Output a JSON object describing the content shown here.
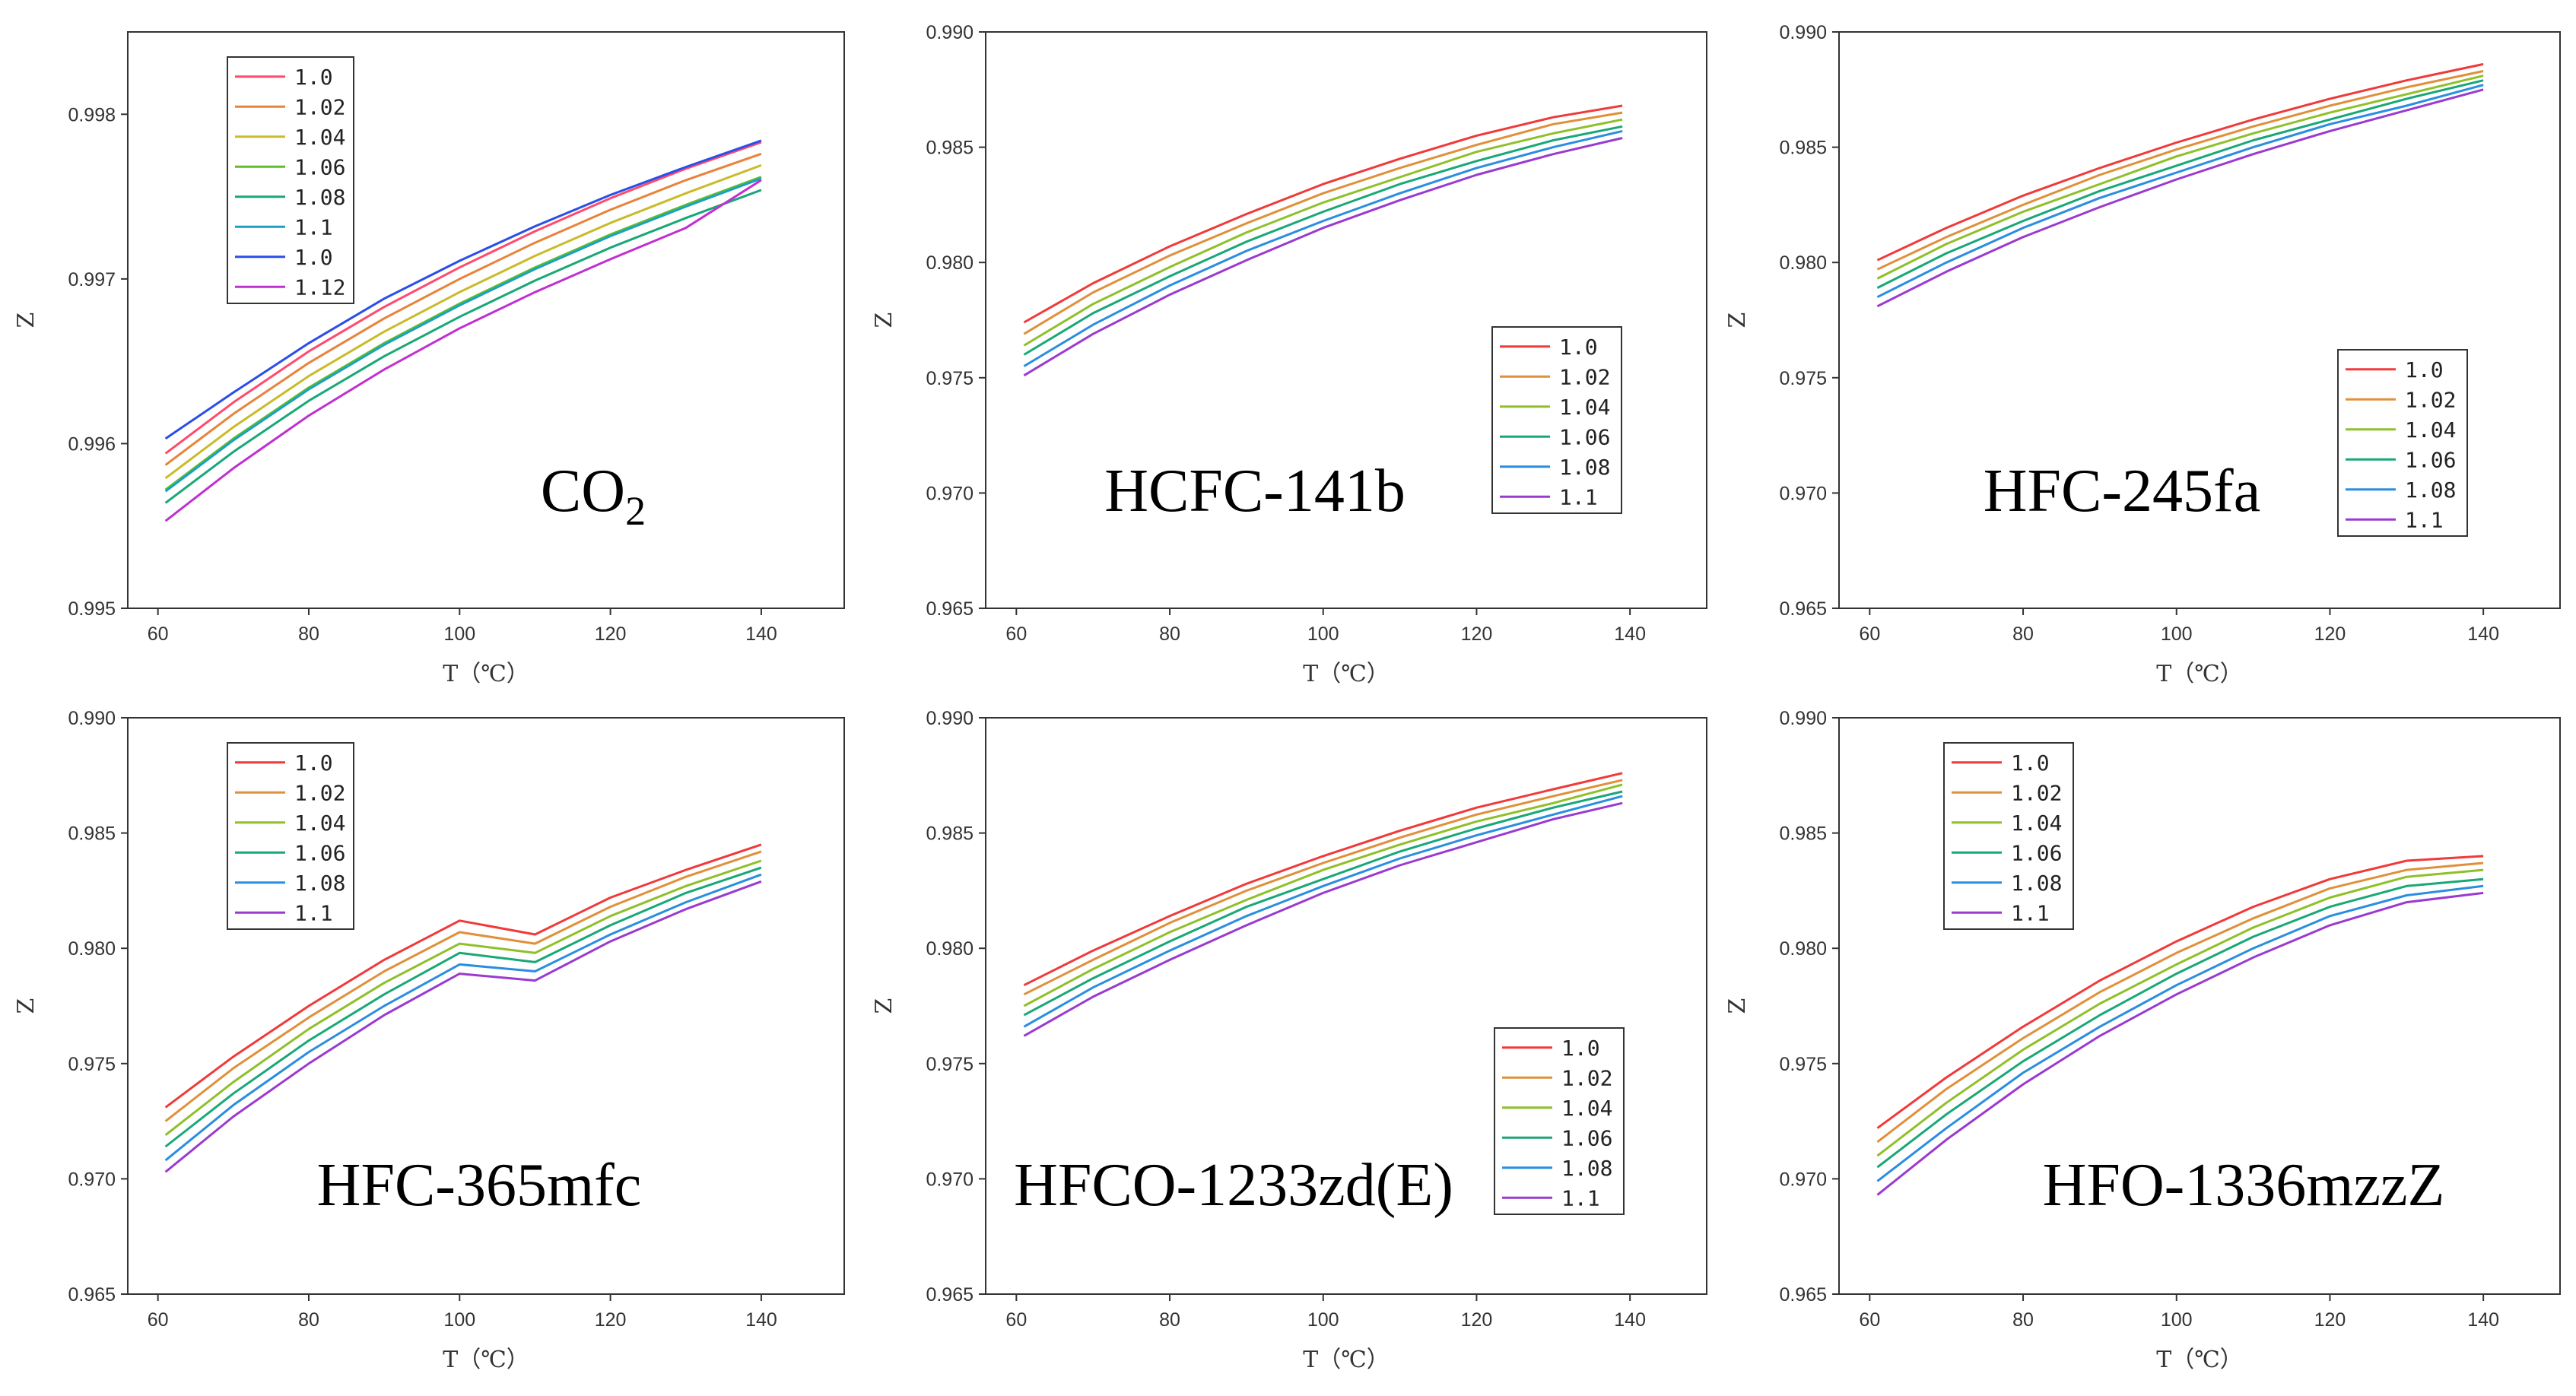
{
  "figure": {
    "x_axis_label": "T（℃）",
    "y_axis_label": "Z"
  },
  "chart_data": [
    {
      "type": "line",
      "title": "CO2",
      "title_main": "CO",
      "title_sub": "2",
      "title_pos": "bottom-right",
      "xlabel": "T（℃）",
      "ylabel": "Z",
      "xlim": [
        56,
        151
      ],
      "ylim": [
        0.995,
        0.9985
      ],
      "xticks": [
        60,
        80,
        100,
        120,
        140
      ],
      "yticks": [
        0.995,
        0.996,
        0.997,
        0.998
      ],
      "ytick_labels": [
        "0.995",
        "0.996",
        "0.997",
        "0.998"
      ],
      "x": [
        61,
        70,
        80,
        90,
        100,
        110,
        120,
        130,
        140
      ],
      "legend_pos": "top-left",
      "series": [
        {
          "name": "1.0",
          "color": "#ff4a6e",
          "values": [
            0.99594,
            0.99625,
            0.99656,
            0.99683,
            0.99707,
            0.99729,
            0.99749,
            0.99767,
            0.99783
          ]
        },
        {
          "name": "1.02",
          "color": "#e8833a",
          "values": [
            0.99587,
            0.99618,
            0.99649,
            0.99676,
            0.997,
            0.99722,
            0.99742,
            0.9976,
            0.99776
          ]
        },
        {
          "name": "1.04",
          "color": "#c9bb2a",
          "values": [
            0.99579,
            0.9961,
            0.99641,
            0.99668,
            0.99692,
            0.99714,
            0.99734,
            0.99752,
            0.99769
          ]
        },
        {
          "name": "1.06",
          "color": "#5cbf2a",
          "values": [
            0.99572,
            0.99603,
            0.99634,
            0.99661,
            0.99685,
            0.99707,
            0.99727,
            0.99745,
            0.99762
          ]
        },
        {
          "name": "1.08",
          "color": "#18a878",
          "values": [
            0.99564,
            0.99595,
            0.99626,
            0.99653,
            0.99677,
            0.99699,
            0.99719,
            0.99737,
            0.99754
          ]
        },
        {
          "name": "1.1",
          "color": "#1aa0c4",
          "values": [
            0.99571,
            0.99602,
            0.99633,
            0.9966,
            0.99684,
            0.99706,
            0.99726,
            0.99744,
            0.99761
          ]
        },
        {
          "name": "1.0",
          "color": "#2a4ee8",
          "values": [
            0.99603,
            0.99631,
            0.99661,
            0.99688,
            0.99711,
            0.99732,
            0.99751,
            0.99768,
            0.99784
          ]
        },
        {
          "name": "1.12",
          "color": "#c030d0",
          "values": [
            0.99553,
            0.99585,
            0.99617,
            0.99645,
            0.9967,
            0.99692,
            0.99712,
            0.99731,
            0.9976
          ]
        }
      ]
    },
    {
      "type": "line",
      "title": "HCFC-141b",
      "title_pos": "bottom-center",
      "xlabel": "T（℃）",
      "ylabel": "Z",
      "xlim": [
        56,
        150
      ],
      "ylim": [
        0.965,
        0.99
      ],
      "xticks": [
        60,
        80,
        100,
        120,
        140
      ],
      "yticks": [
        0.965,
        0.97,
        0.975,
        0.98,
        0.985,
        0.99
      ],
      "ytick_labels": [
        "0.965",
        "0.970",
        "0.975",
        "0.980",
        "0.985",
        "0.990"
      ],
      "x": [
        61,
        70,
        80,
        90,
        100,
        110,
        120,
        130,
        139
      ],
      "legend_pos": "center-right",
      "series": [
        {
          "name": "1.0",
          "color": "#f03a3a",
          "values": [
            0.9774,
            0.9791,
            0.9807,
            0.9821,
            0.9834,
            0.9845,
            0.9855,
            0.9863,
            0.9868
          ]
        },
        {
          "name": "1.02",
          "color": "#e0903a",
          "values": [
            0.9769,
            0.9787,
            0.9803,
            0.9817,
            0.983,
            0.9841,
            0.9851,
            0.986,
            0.9865
          ]
        },
        {
          "name": "1.04",
          "color": "#8fc02a",
          "values": [
            0.9764,
            0.9782,
            0.9798,
            0.9813,
            0.9826,
            0.9837,
            0.9848,
            0.9856,
            0.9862
          ]
        },
        {
          "name": "1.06",
          "color": "#18a878",
          "values": [
            0.976,
            0.9778,
            0.9794,
            0.9809,
            0.9822,
            0.9834,
            0.9844,
            0.9853,
            0.9859
          ]
        },
        {
          "name": "1.08",
          "color": "#2a8ee0",
          "values": [
            0.9755,
            0.9773,
            0.979,
            0.9805,
            0.9818,
            0.983,
            0.9841,
            0.985,
            0.9857
          ]
        },
        {
          "name": "1.1",
          "color": "#9a3ad0",
          "values": [
            0.9751,
            0.9769,
            0.9786,
            0.9801,
            0.9815,
            0.9827,
            0.9838,
            0.9847,
            0.9854
          ]
        }
      ]
    },
    {
      "type": "line",
      "title": "HFC-245fa",
      "title_pos": "bottom-center",
      "xlabel": "T（℃）",
      "ylabel": "Z",
      "xlim": [
        56,
        150
      ],
      "ylim": [
        0.965,
        0.99
      ],
      "xticks": [
        60,
        80,
        100,
        120,
        140
      ],
      "yticks": [
        0.965,
        0.97,
        0.975,
        0.98,
        0.985,
        0.99
      ],
      "ytick_labels": [
        "0.965",
        "0.970",
        "0.975",
        "0.980",
        "0.985",
        "0.990"
      ],
      "x": [
        61,
        70,
        80,
        90,
        100,
        110,
        120,
        130,
        140
      ],
      "legend_pos": "center-right",
      "series": [
        {
          "name": "1.0",
          "color": "#f03a3a",
          "values": [
            0.9801,
            0.9815,
            0.9829,
            0.9841,
            0.9852,
            0.9862,
            0.9871,
            0.9879,
            0.9886
          ]
        },
        {
          "name": "1.02",
          "color": "#e0903a",
          "values": [
            0.9797,
            0.9811,
            0.9825,
            0.9838,
            0.9849,
            0.9859,
            0.9868,
            0.9876,
            0.9883
          ]
        },
        {
          "name": "1.04",
          "color": "#8fc02a",
          "values": [
            0.9793,
            0.9808,
            0.9822,
            0.9834,
            0.9846,
            0.9856,
            0.9865,
            0.9873,
            0.9881
          ]
        },
        {
          "name": "1.06",
          "color": "#18a878",
          "values": [
            0.9789,
            0.9804,
            0.9818,
            0.9831,
            0.9842,
            0.9853,
            0.9862,
            0.9871,
            0.9879
          ]
        },
        {
          "name": "1.08",
          "color": "#2a8ee0",
          "values": [
            0.9785,
            0.98,
            0.9815,
            0.9828,
            0.9839,
            0.985,
            0.986,
            0.9868,
            0.9877
          ]
        },
        {
          "name": "1.1",
          "color": "#9a3ad0",
          "values": [
            0.9781,
            0.9796,
            0.9811,
            0.9824,
            0.9836,
            0.9847,
            0.9857,
            0.9866,
            0.9875
          ]
        }
      ]
    },
    {
      "type": "line",
      "title": "HFC-365mfc",
      "title_pos": "bottom-center",
      "xlabel": "T（℃）",
      "ylabel": "Z",
      "xlim": [
        56,
        151
      ],
      "ylim": [
        0.965,
        0.99
      ],
      "xticks": [
        60,
        80,
        100,
        120,
        140
      ],
      "yticks": [
        0.965,
        0.97,
        0.975,
        0.98,
        0.985,
        0.99
      ],
      "ytick_labels": [
        "0.965",
        "0.970",
        "0.975",
        "0.980",
        "0.985",
        "0.990"
      ],
      "x": [
        61,
        70,
        80,
        90,
        100,
        110,
        120,
        130,
        140
      ],
      "legend_pos": "top-left",
      "series": [
        {
          "name": "1.0",
          "color": "#f03a3a",
          "values": [
            0.9731,
            0.9753,
            0.9775,
            0.9795,
            0.9812,
            0.9806,
            0.9822,
            0.9834,
            0.9845
          ]
        },
        {
          "name": "1.02",
          "color": "#e0903a",
          "values": [
            0.9725,
            0.9748,
            0.977,
            0.979,
            0.9807,
            0.9802,
            0.9818,
            0.9831,
            0.9842
          ]
        },
        {
          "name": "1.04",
          "color": "#8fc02a",
          "values": [
            0.9719,
            0.9742,
            0.9765,
            0.9785,
            0.9802,
            0.9798,
            0.9814,
            0.9827,
            0.9838
          ]
        },
        {
          "name": "1.06",
          "color": "#18a878",
          "values": [
            0.9714,
            0.9737,
            0.976,
            0.978,
            0.9798,
            0.9794,
            0.981,
            0.9824,
            0.9835
          ]
        },
        {
          "name": "1.08",
          "color": "#2a8ee0",
          "values": [
            0.9708,
            0.9732,
            0.9755,
            0.9775,
            0.9793,
            0.979,
            0.9806,
            0.982,
            0.9832
          ]
        },
        {
          "name": "1.1",
          "color": "#9a3ad0",
          "values": [
            0.9703,
            0.9727,
            0.975,
            0.9771,
            0.9789,
            0.9786,
            0.9803,
            0.9817,
            0.9829
          ]
        }
      ]
    },
    {
      "type": "line",
      "title": "HFCO-1233zd(E)",
      "title_pos": "bottom-center",
      "xlabel": "T（℃）",
      "ylabel": "Z",
      "xlim": [
        56,
        150
      ],
      "ylim": [
        0.965,
        0.99
      ],
      "xticks": [
        60,
        80,
        100,
        120,
        140
      ],
      "yticks": [
        0.965,
        0.97,
        0.975,
        0.98,
        0.985,
        0.99
      ],
      "ytick_labels": [
        "0.965",
        "0.970",
        "0.975",
        "0.980",
        "0.985",
        "0.990"
      ],
      "x": [
        61,
        70,
        80,
        90,
        100,
        110,
        120,
        130,
        139
      ],
      "legend_pos": "bottom-right",
      "series": [
        {
          "name": "1.0",
          "color": "#f03a3a",
          "values": [
            0.9784,
            0.9799,
            0.9814,
            0.9828,
            0.984,
            0.9851,
            0.9861,
            0.9869,
            0.9876
          ]
        },
        {
          "name": "1.02",
          "color": "#e0903a",
          "values": [
            0.978,
            0.9795,
            0.9811,
            0.9825,
            0.9837,
            0.9848,
            0.9858,
            0.9866,
            0.9873
          ]
        },
        {
          "name": "1.04",
          "color": "#8fc02a",
          "values": [
            0.9775,
            0.9791,
            0.9807,
            0.9821,
            0.9834,
            0.9845,
            0.9855,
            0.9863,
            0.9871
          ]
        },
        {
          "name": "1.06",
          "color": "#18a878",
          "values": [
            0.9771,
            0.9787,
            0.9803,
            0.9818,
            0.983,
            0.9842,
            0.9852,
            0.9861,
            0.9868
          ]
        },
        {
          "name": "1.08",
          "color": "#2a8ee0",
          "values": [
            0.9766,
            0.9783,
            0.9799,
            0.9814,
            0.9827,
            0.9839,
            0.9849,
            0.9858,
            0.9866
          ]
        },
        {
          "name": "1.1",
          "color": "#9a3ad0",
          "values": [
            0.9762,
            0.9779,
            0.9795,
            0.981,
            0.9824,
            0.9836,
            0.9846,
            0.9856,
            0.9863
          ]
        }
      ]
    },
    {
      "type": "line",
      "title": "HFO-1336mzzZ",
      "title_pos": "bottom-center",
      "xlabel": "T（℃）",
      "ylabel": "Z",
      "xlim": [
        56,
        150
      ],
      "ylim": [
        0.965,
        0.99
      ],
      "xticks": [
        60,
        80,
        100,
        120,
        140
      ],
      "yticks": [
        0.965,
        0.97,
        0.975,
        0.98,
        0.985,
        0.99
      ],
      "ytick_labels": [
        "0.965",
        "0.970",
        "0.975",
        "0.980",
        "0.985",
        "0.990"
      ],
      "x": [
        61,
        70,
        80,
        90,
        100,
        110,
        120,
        130,
        140
      ],
      "legend_pos": "top-left",
      "series": [
        {
          "name": "1.0",
          "color": "#f03a3a",
          "values": [
            0.9722,
            0.9744,
            0.9766,
            0.9786,
            0.9803,
            0.9818,
            0.983,
            0.9838,
            0.984
          ]
        },
        {
          "name": "1.02",
          "color": "#e0903a",
          "values": [
            0.9716,
            0.9739,
            0.9761,
            0.9781,
            0.9798,
            0.9813,
            0.9826,
            0.9834,
            0.9837
          ]
        },
        {
          "name": "1.04",
          "color": "#8fc02a",
          "values": [
            0.971,
            0.9733,
            0.9756,
            0.9776,
            0.9793,
            0.9809,
            0.9822,
            0.9831,
            0.9834
          ]
        },
        {
          "name": "1.06",
          "color": "#18a878",
          "values": [
            0.9705,
            0.9728,
            0.9751,
            0.9771,
            0.9789,
            0.9805,
            0.9818,
            0.9827,
            0.983
          ]
        },
        {
          "name": "1.08",
          "color": "#2a8ee0",
          "values": [
            0.9699,
            0.9722,
            0.9746,
            0.9766,
            0.9784,
            0.98,
            0.9814,
            0.9823,
            0.9827
          ]
        },
        {
          "name": "1.1",
          "color": "#9a3ad0",
          "values": [
            0.9693,
            0.9717,
            0.9741,
            0.9762,
            0.978,
            0.9796,
            0.981,
            0.982,
            0.9824
          ]
        }
      ]
    }
  ]
}
